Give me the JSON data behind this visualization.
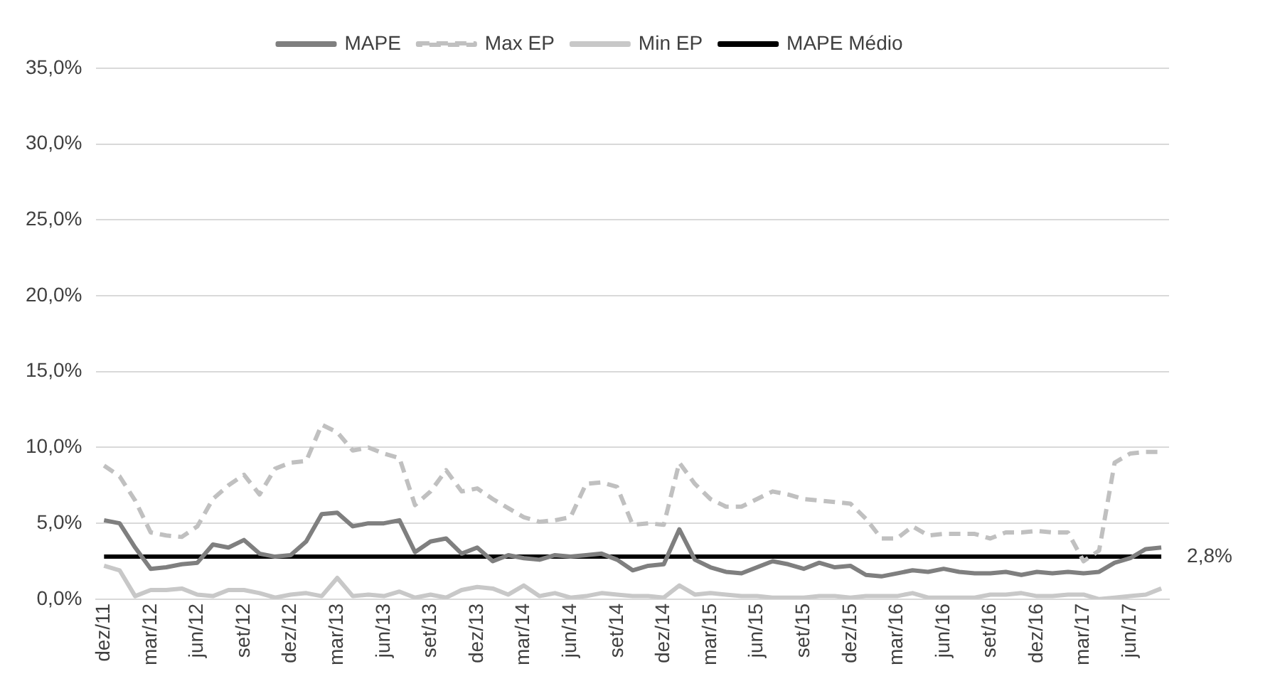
{
  "chart_data": {
    "type": "line",
    "categories": [
      "dez/11",
      null,
      null,
      "mar/12",
      null,
      null,
      "jun/12",
      null,
      null,
      "set/12",
      null,
      null,
      "dez/12",
      null,
      null,
      "mar/13",
      null,
      null,
      "jun/13",
      null,
      null,
      "set/13",
      null,
      null,
      "dez/13",
      null,
      null,
      "mar/14",
      null,
      null,
      "jun/14",
      null,
      null,
      "set/14",
      null,
      null,
      "dez/14",
      null,
      null,
      "mar/15",
      null,
      null,
      "jun/15",
      null,
      null,
      "set/15",
      null,
      null,
      "dez/15",
      null,
      null,
      "mar/16",
      null,
      null,
      "jun/16",
      null,
      null,
      "set/16",
      null,
      null,
      "dez/16",
      null,
      null,
      "mar/17",
      null,
      null,
      "jun/17",
      null,
      null
    ],
    "series": [
      {
        "name": "MAPE",
        "color": "#7f7f7f",
        "line_style": "solid",
        "values": [
          5.2,
          5.0,
          3.4,
          2.0,
          2.1,
          2.3,
          2.4,
          3.6,
          3.4,
          3.9,
          3.0,
          2.8,
          2.9,
          3.8,
          5.6,
          5.7,
          4.8,
          5.0,
          5.0,
          5.2,
          3.1,
          3.8,
          4.0,
          3.0,
          3.4,
          2.5,
          2.9,
          2.7,
          2.6,
          2.9,
          2.8,
          2.9,
          3.0,
          2.6,
          1.9,
          2.2,
          2.3,
          4.6,
          2.6,
          2.1,
          1.8,
          1.7,
          2.1,
          2.5,
          2.3,
          2.0,
          2.4,
          2.1,
          2.2,
          1.6,
          1.5,
          1.7,
          1.9,
          1.8,
          2.0,
          1.8,
          1.7,
          1.7,
          1.8,
          1.6,
          1.8,
          1.7,
          1.8,
          1.7,
          1.8,
          2.4,
          2.7,
          3.3,
          3.4
        ]
      },
      {
        "name": "Max EP",
        "color": "#c0c0c0",
        "line_style": "dashed",
        "values": [
          8.8,
          8.1,
          6.5,
          4.4,
          4.2,
          4.1,
          4.8,
          6.6,
          7.5,
          8.2,
          6.9,
          8.6,
          9.0,
          9.1,
          11.5,
          11.0,
          9.8,
          10.0,
          9.6,
          9.3,
          6.2,
          7.1,
          8.5,
          7.1,
          7.3,
          6.6,
          6.0,
          5.4,
          5.1,
          5.2,
          5.4,
          7.6,
          7.7,
          7.4,
          4.9,
          5.0,
          4.9,
          9.0,
          7.6,
          6.6,
          6.1,
          6.1,
          6.6,
          7.1,
          6.9,
          6.6,
          6.5,
          6.4,
          6.3,
          5.3,
          4.0,
          4.0,
          4.8,
          4.2,
          4.3,
          4.3,
          4.3,
          4.0,
          4.4,
          4.4,
          4.5,
          4.4,
          4.4,
          2.5,
          3.2,
          9.0,
          9.6,
          9.7,
          9.7
        ]
      },
      {
        "name": "Min EP",
        "color": "#c8c8c8",
        "line_style": "solid",
        "values": [
          2.2,
          1.9,
          0.2,
          0.6,
          0.6,
          0.7,
          0.3,
          0.2,
          0.6,
          0.6,
          0.4,
          0.1,
          0.3,
          0.4,
          0.2,
          1.4,
          0.2,
          0.3,
          0.2,
          0.5,
          0.1,
          0.3,
          0.1,
          0.6,
          0.8,
          0.7,
          0.3,
          0.9,
          0.2,
          0.4,
          0.1,
          0.2,
          0.4,
          0.3,
          0.2,
          0.2,
          0.1,
          0.9,
          0.3,
          0.4,
          0.3,
          0.2,
          0.2,
          0.1,
          0.1,
          0.1,
          0.2,
          0.2,
          0.1,
          0.2,
          0.2,
          0.2,
          0.4,
          0.1,
          0.1,
          0.1,
          0.1,
          0.3,
          0.3,
          0.4,
          0.2,
          0.2,
          0.3,
          0.3,
          0.0,
          0.1,
          0.2,
          0.3,
          0.7
        ]
      },
      {
        "name": "MAPE Médio",
        "color": "#000000",
        "line_style": "solid",
        "values": [
          2.8,
          2.8,
          2.8,
          2.8,
          2.8,
          2.8,
          2.8,
          2.8,
          2.8,
          2.8,
          2.8,
          2.8,
          2.8,
          2.8,
          2.8,
          2.8,
          2.8,
          2.8,
          2.8,
          2.8,
          2.8,
          2.8,
          2.8,
          2.8,
          2.8,
          2.8,
          2.8,
          2.8,
          2.8,
          2.8,
          2.8,
          2.8,
          2.8,
          2.8,
          2.8,
          2.8,
          2.8,
          2.8,
          2.8,
          2.8,
          2.8,
          2.8,
          2.8,
          2.8,
          2.8,
          2.8,
          2.8,
          2.8,
          2.8,
          2.8,
          2.8,
          2.8,
          2.8,
          2.8,
          2.8,
          2.8,
          2.8,
          2.8,
          2.8,
          2.8,
          2.8,
          2.8,
          2.8,
          2.8,
          2.8,
          2.8,
          2.8,
          2.8,
          2.8
        ],
        "value_labels": [
          null,
          null,
          null,
          null,
          null,
          null,
          null,
          null,
          null,
          null,
          null,
          null,
          null,
          null,
          null,
          null,
          null,
          null,
          null,
          null,
          null,
          null,
          null,
          null,
          null,
          null,
          null,
          null,
          null,
          null,
          null,
          null,
          null,
          null,
          null,
          null,
          null,
          null,
          null,
          null,
          null,
          null,
          null,
          null,
          null,
          null,
          null,
          null,
          null,
          null,
          null,
          null,
          null,
          null,
          null,
          null,
          null,
          null,
          null,
          null,
          null,
          null,
          null,
          null,
          null,
          null,
          null,
          null,
          "2,8%"
        ]
      }
    ],
    "ylim": [
      0,
      35
    ],
    "yticks": [
      {
        "value": 0,
        "label": "0,0%"
      },
      {
        "value": 5,
        "label": "5,0%"
      },
      {
        "value": 10,
        "label": "10,0%"
      },
      {
        "value": 15,
        "label": "15,0%"
      },
      {
        "value": 20,
        "label": "20,0%"
      },
      {
        "value": 25,
        "label": "25,0%"
      },
      {
        "value": 30,
        "label": "30,0%"
      },
      {
        "value": 35,
        "label": "35,0%"
      }
    ],
    "grid": "y",
    "legend": "top",
    "marker": "none"
  }
}
